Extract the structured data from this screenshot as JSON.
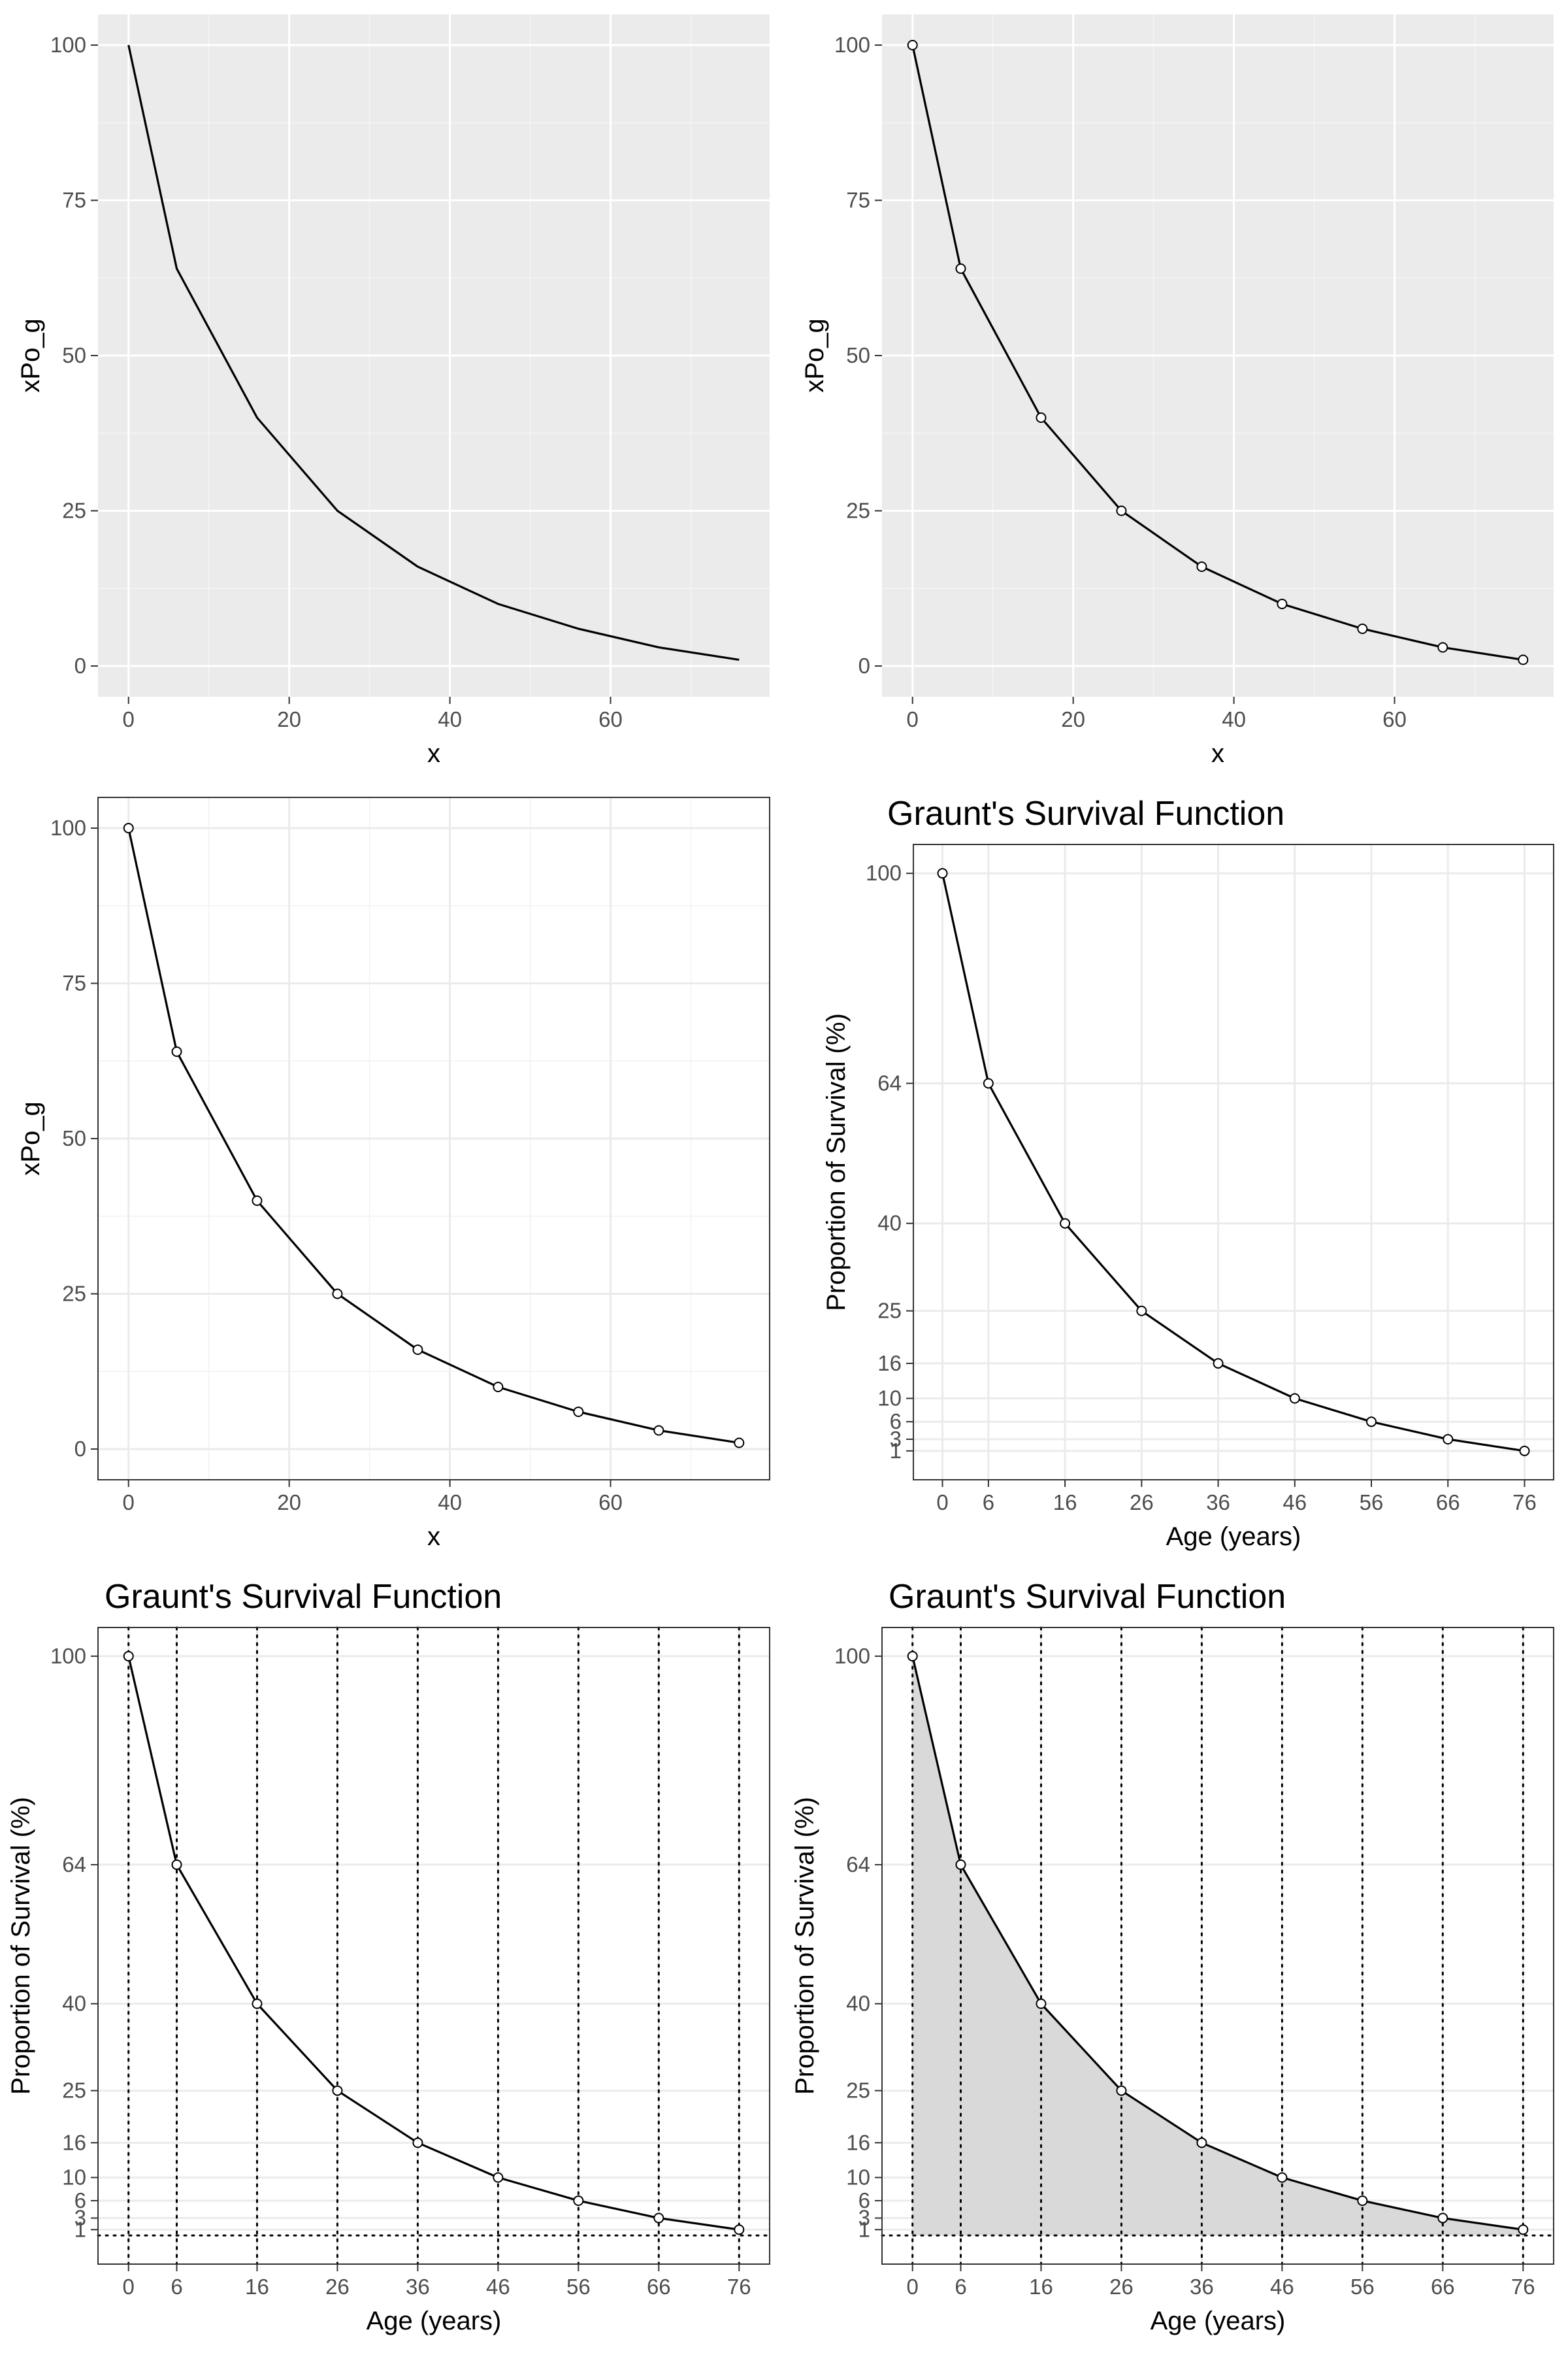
{
  "chart_data": [
    {
      "type": "line",
      "panel": "top-left",
      "theme": "grey",
      "points": false,
      "title": "",
      "xlabel": "x",
      "ylabel": "xPo_g",
      "x": [
        0,
        6,
        16,
        26,
        36,
        46,
        56,
        66,
        76
      ],
      "y": [
        100,
        64,
        40,
        25,
        16,
        10,
        6,
        3,
        1
      ],
      "xlim": [
        -3.8,
        79.8
      ],
      "ylim": [
        -4.95,
        104.95
      ],
      "xticks": [
        0,
        20,
        40,
        60
      ],
      "yticks": [
        0,
        25,
        50,
        75,
        100
      ],
      "xminor": [
        10,
        30,
        50,
        70
      ],
      "yminor": [
        12.5,
        37.5,
        62.5,
        87.5
      ],
      "grid": true
    },
    {
      "type": "line",
      "panel": "top-right",
      "theme": "grey",
      "points": true,
      "title": "",
      "xlabel": "x",
      "ylabel": "xPo_g",
      "x": [
        0,
        6,
        16,
        26,
        36,
        46,
        56,
        66,
        76
      ],
      "y": [
        100,
        64,
        40,
        25,
        16,
        10,
        6,
        3,
        1
      ],
      "xlim": [
        -3.8,
        79.8
      ],
      "ylim": [
        -4.95,
        104.95
      ],
      "xticks": [
        0,
        20,
        40,
        60
      ],
      "yticks": [
        0,
        25,
        50,
        75,
        100
      ],
      "xminor": [
        10,
        30,
        50,
        70
      ],
      "yminor": [
        12.5,
        37.5,
        62.5,
        87.5
      ],
      "grid": true
    },
    {
      "type": "line",
      "panel": "middle-left",
      "theme": "bw",
      "points": true,
      "title": "",
      "xlabel": "x",
      "ylabel": "xPo_g",
      "x": [
        0,
        6,
        16,
        26,
        36,
        46,
        56,
        66,
        76
      ],
      "y": [
        100,
        64,
        40,
        25,
        16,
        10,
        6,
        3,
        1
      ],
      "xlim": [
        -3.8,
        79.8
      ],
      "ylim": [
        -4.95,
        104.95
      ],
      "xticks": [
        0,
        20,
        40,
        60
      ],
      "yticks": [
        0,
        25,
        50,
        75,
        100
      ],
      "xminor": [
        10,
        30,
        50,
        70
      ],
      "yminor": [
        12.5,
        37.5,
        62.5,
        87.5
      ],
      "grid": true
    },
    {
      "type": "line",
      "panel": "middle-right",
      "theme": "bw",
      "points": true,
      "title": "Graunt's Survival Function",
      "xlabel": "Age (years)",
      "ylabel": "Proportion of Survival (%)",
      "x": [
        0,
        6,
        16,
        26,
        36,
        46,
        56,
        66,
        76
      ],
      "y": [
        100,
        64,
        40,
        25,
        16,
        10,
        6,
        3,
        1
      ],
      "xlim": [
        -3.8,
        79.8
      ],
      "ylim": [
        -3.95,
        104.95
      ],
      "xticks": [
        0,
        6,
        16,
        26,
        36,
        46,
        56,
        66,
        76
      ],
      "yticks": [
        1,
        3,
        6,
        10,
        16,
        25,
        40,
        64,
        100
      ],
      "grid": true
    },
    {
      "type": "line",
      "panel": "bottom-left",
      "theme": "bw",
      "points": true,
      "title": "Graunt's Survival Function",
      "xlabel": "Age (years)",
      "ylabel": "Proportion of Survival (%)",
      "x": [
        0,
        6,
        16,
        26,
        36,
        46,
        56,
        66,
        76
      ],
      "y": [
        100,
        64,
        40,
        25,
        16,
        10,
        6,
        3,
        1
      ],
      "xlim": [
        -3.8,
        79.8
      ],
      "ylim": [
        -4.95,
        104.95
      ],
      "xticks": [
        0,
        6,
        16,
        26,
        36,
        46,
        56,
        66,
        76
      ],
      "yticks": [
        1,
        3,
        6,
        10,
        16,
        25,
        40,
        64,
        100
      ],
      "grid": true,
      "dotted_vlines": [
        0,
        6,
        16,
        26,
        36,
        46,
        56,
        66,
        76
      ],
      "dotted_hline": 0
    },
    {
      "type": "area",
      "panel": "bottom-right",
      "theme": "bw",
      "points": true,
      "fill": "#d9d9d9",
      "title": "Graunt's Survival Function",
      "xlabel": "Age (years)",
      "ylabel": "Proportion of Survival (%)",
      "x": [
        0,
        6,
        16,
        26,
        36,
        46,
        56,
        66,
        76
      ],
      "y": [
        100,
        64,
        40,
        25,
        16,
        10,
        6,
        3,
        1
      ],
      "xlim": [
        -3.8,
        79.8
      ],
      "ylim": [
        -4.95,
        104.95
      ],
      "xticks": [
        0,
        6,
        16,
        26,
        36,
        46,
        56,
        66,
        76
      ],
      "yticks": [
        1,
        3,
        6,
        10,
        16,
        25,
        40,
        64,
        100
      ],
      "grid": true,
      "dotted_vlines": [
        0,
        6,
        16,
        26,
        36,
        46,
        56,
        66,
        76
      ],
      "dotted_hline": 0
    }
  ]
}
